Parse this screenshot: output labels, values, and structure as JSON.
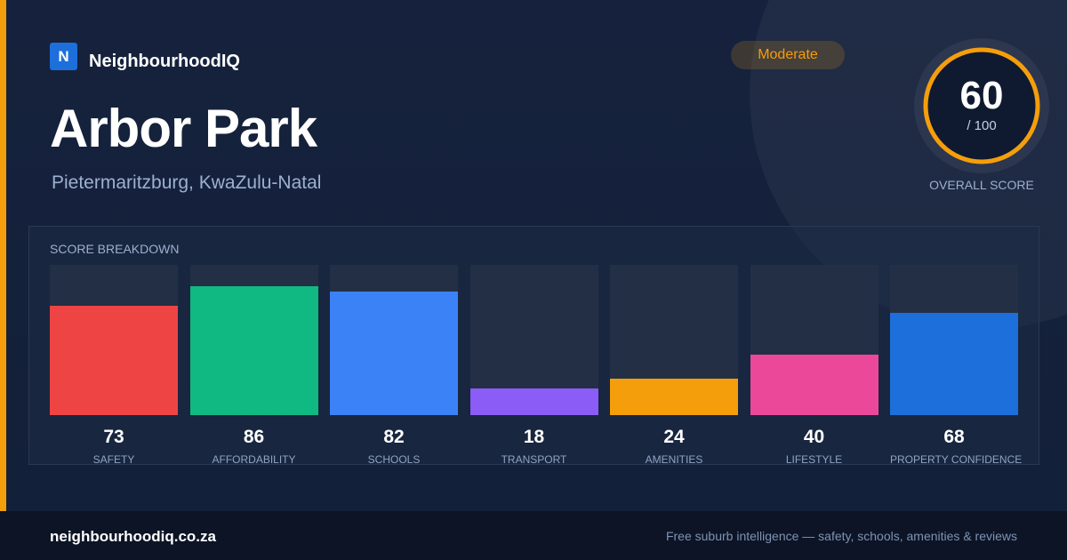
{
  "brand": {
    "logo_letter": "N",
    "name": "NeighbourhoodIQ"
  },
  "suburb": {
    "name": "Arbor Park",
    "location": "Pietermaritzburg, KwaZulu-Natal"
  },
  "rating": {
    "label": "Moderate",
    "color": "#f59e0b"
  },
  "overall": {
    "score": "60",
    "max": "/ 100",
    "caption": "OVERALL SCORE",
    "value": 60,
    "out_of": 100
  },
  "breakdown": {
    "title": "SCORE BREAKDOWN",
    "items": [
      {
        "label": "SAFETY",
        "value": 73,
        "display": "73",
        "color": "#ef4444"
      },
      {
        "label": "AFFORDABILITY",
        "value": 86,
        "display": "86",
        "color": "#10b981"
      },
      {
        "label": "SCHOOLS",
        "value": 82,
        "display": "82",
        "color": "#3b82f6"
      },
      {
        "label": "TRANSPORT",
        "value": 18,
        "display": "18",
        "color": "#8b5cf6"
      },
      {
        "label": "AMENITIES",
        "value": 24,
        "display": "24",
        "color": "#f59e0b"
      },
      {
        "label": "LIFESTYLE",
        "value": 40,
        "display": "40",
        "color": "#ec4899"
      },
      {
        "label": "PROPERTY CONFIDENCE",
        "value": 68,
        "display": "68",
        "color": "#1d6fdc"
      }
    ]
  },
  "footer": {
    "url": "neighbourhoodiq.co.za",
    "tagline": "Free suburb intelligence — safety, schools, amenities & reviews"
  }
}
